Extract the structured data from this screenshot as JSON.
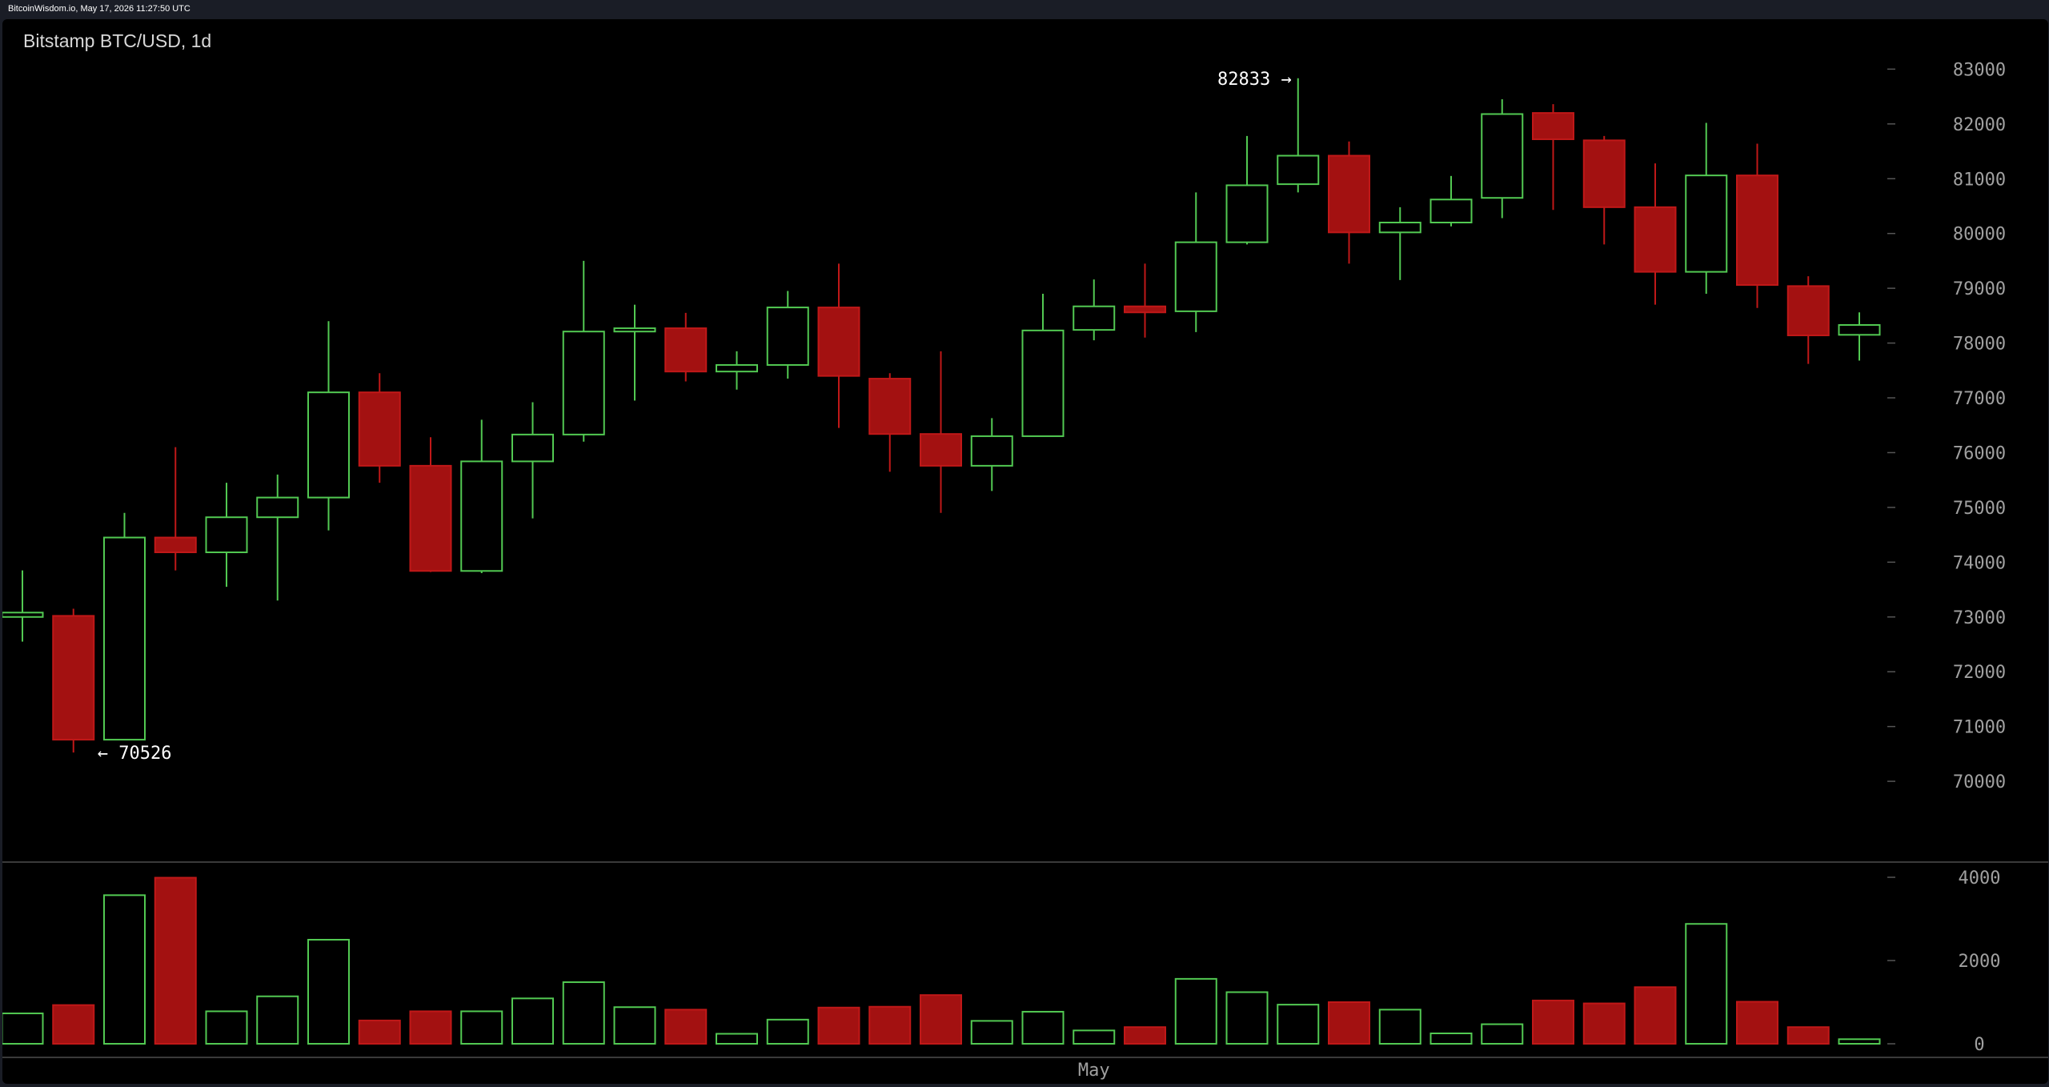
{
  "header": {
    "source_text": "BitcoinWisdom.io, May 17, 2026 11:27:50 UTC"
  },
  "chart": {
    "title": "Bitstamp BTC/USD, 1d"
  },
  "colors": {
    "up": "#52c952",
    "down": "#a31111",
    "down_border": "#c01818",
    "background": "#000000",
    "tick_text": "#a0a0a0"
  },
  "chart_data": {
    "type": "candlestick",
    "price_ylim": [
      69300,
      83400
    ],
    "price_ticks": [
      70000,
      71000,
      72000,
      73000,
      74000,
      75000,
      76000,
      77000,
      78000,
      79000,
      80000,
      81000,
      82000,
      83000
    ],
    "volume_ylim": [
      0,
      4000
    ],
    "volume_ticks": [
      0,
      2000,
      4000
    ],
    "x_labels": [
      {
        "index": 21,
        "label": "May"
      }
    ],
    "annotations": {
      "high": {
        "index": 25,
        "value": 82833,
        "text": "82833 →"
      },
      "low": {
        "index": 1,
        "value": 70526,
        "text": "← 70526"
      }
    },
    "candles": [
      {
        "o": 73000,
        "h": 73850,
        "l": 72550,
        "c": 73080,
        "v": 730
      },
      {
        "o": 73020,
        "h": 73150,
        "l": 70526,
        "c": 70760,
        "v": 930
      },
      {
        "o": 70760,
        "h": 74900,
        "l": 70760,
        "c": 74450,
        "v": 3570
      },
      {
        "o": 74450,
        "h": 76100,
        "l": 73850,
        "c": 74180,
        "v": 3990
      },
      {
        "o": 74180,
        "h": 75450,
        "l": 73550,
        "c": 74820,
        "v": 780
      },
      {
        "o": 74820,
        "h": 75600,
        "l": 73300,
        "c": 75180,
        "v": 1140
      },
      {
        "o": 75180,
        "h": 78400,
        "l": 74580,
        "c": 77100,
        "v": 2500
      },
      {
        "o": 77100,
        "h": 77450,
        "l": 75450,
        "c": 75760,
        "v": 560
      },
      {
        "o": 75760,
        "h": 76280,
        "l": 73820,
        "c": 73840,
        "v": 780
      },
      {
        "o": 73840,
        "h": 76600,
        "l": 73800,
        "c": 75840,
        "v": 780
      },
      {
        "o": 75840,
        "h": 76920,
        "l": 74800,
        "c": 76330,
        "v": 1090
      },
      {
        "o": 76330,
        "h": 79500,
        "l": 76200,
        "c": 78210,
        "v": 1480
      },
      {
        "o": 78210,
        "h": 78700,
        "l": 76950,
        "c": 78270,
        "v": 880
      },
      {
        "o": 78270,
        "h": 78550,
        "l": 77300,
        "c": 77480,
        "v": 820
      },
      {
        "o": 77480,
        "h": 77850,
        "l": 77150,
        "c": 77600,
        "v": 240
      },
      {
        "o": 77600,
        "h": 78950,
        "l": 77350,
        "c": 78650,
        "v": 580
      },
      {
        "o": 78650,
        "h": 79450,
        "l": 76450,
        "c": 77400,
        "v": 870
      },
      {
        "o": 77350,
        "h": 77450,
        "l": 75650,
        "c": 76340,
        "v": 890
      },
      {
        "o": 76340,
        "h": 77850,
        "l": 74900,
        "c": 75760,
        "v": 1170
      },
      {
        "o": 75760,
        "h": 76630,
        "l": 75300,
        "c": 76300,
        "v": 550
      },
      {
        "o": 76300,
        "h": 78900,
        "l": 76300,
        "c": 78230,
        "v": 770
      },
      {
        "o": 78240,
        "h": 79160,
        "l": 78050,
        "c": 78670,
        "v": 320
      },
      {
        "o": 78670,
        "h": 79450,
        "l": 78100,
        "c": 78560,
        "v": 400
      },
      {
        "o": 78580,
        "h": 80750,
        "l": 78200,
        "c": 79840,
        "v": 1560
      },
      {
        "o": 79840,
        "h": 81780,
        "l": 79800,
        "c": 80880,
        "v": 1240
      },
      {
        "o": 80900,
        "h": 82833,
        "l": 80750,
        "c": 81420,
        "v": 940
      },
      {
        "o": 81420,
        "h": 81680,
        "l": 79450,
        "c": 80020,
        "v": 1000
      },
      {
        "o": 80020,
        "h": 80480,
        "l": 79150,
        "c": 80200,
        "v": 820
      },
      {
        "o": 80200,
        "h": 81050,
        "l": 80130,
        "c": 80620,
        "v": 250
      },
      {
        "o": 80650,
        "h": 82450,
        "l": 80280,
        "c": 82180,
        "v": 470
      },
      {
        "o": 82200,
        "h": 82360,
        "l": 80430,
        "c": 81720,
        "v": 1040
      },
      {
        "o": 81700,
        "h": 81780,
        "l": 79800,
        "c": 80480,
        "v": 970
      },
      {
        "o": 80480,
        "h": 81280,
        "l": 78700,
        "c": 79300,
        "v": 1360
      },
      {
        "o": 79300,
        "h": 82020,
        "l": 78900,
        "c": 81060,
        "v": 2880
      },
      {
        "o": 81060,
        "h": 81640,
        "l": 78640,
        "c": 79060,
        "v": 1010
      },
      {
        "o": 79040,
        "h": 79220,
        "l": 77620,
        "c": 78140,
        "v": 400
      },
      {
        "o": 78150,
        "h": 78560,
        "l": 77680,
        "c": 78330,
        "v": 110
      }
    ]
  }
}
